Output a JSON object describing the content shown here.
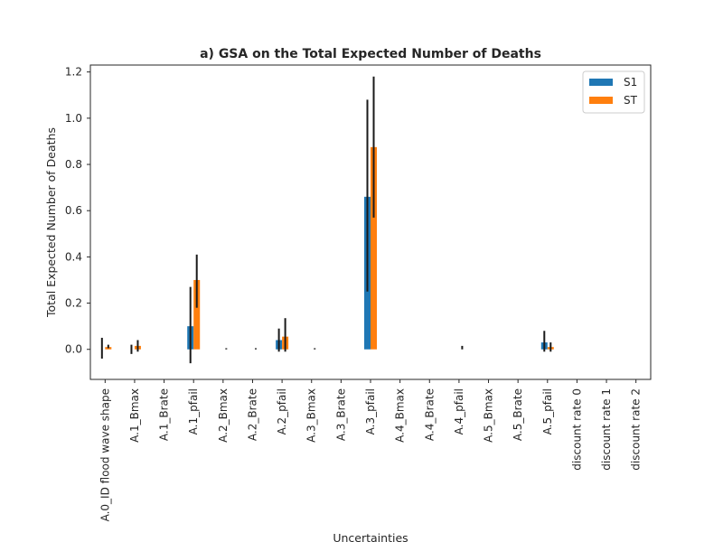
{
  "chart_data": {
    "type": "bar",
    "title": "a) GSA on the Total Expected Number of Deaths",
    "xlabel": "Uncertainties",
    "ylabel": "Total Expected Number of Deaths",
    "ylim": [
      -0.13,
      1.23
    ],
    "yticks": [
      "0.0",
      "0.2",
      "0.4",
      "0.6",
      "0.8",
      "1.0",
      "1.2"
    ],
    "grid": false,
    "legend_position": "top-right",
    "categories": [
      "A.0_ID flood wave shape",
      "A.1_Bmax",
      "A.1_Brate",
      "A.1_pfail",
      "A.2_Bmax",
      "A.2_Brate",
      "A.2_pfail",
      "A.3_Bmax",
      "A.3_Brate",
      "A.3_pfail",
      "A.4_Bmax",
      "A.4_Brate",
      "A.4_pfail",
      "A.5_Bmax",
      "A.5_Brate",
      "A.5_pfail",
      "discount rate 0",
      "discount rate 1",
      "discount rate 2"
    ],
    "series": [
      {
        "name": "S1",
        "color": "#1f77b4",
        "values": [
          0.0,
          0.0,
          0.0,
          0.1,
          0.0,
          0.0,
          0.04,
          0.0,
          0.0,
          0.66,
          0.0,
          0.0,
          0.0,
          0.0,
          0.0,
          0.03,
          0.0,
          0.0,
          0.0
        ],
        "err_low": [
          -0.04,
          -0.02,
          0.0,
          -0.06,
          0.0,
          0.0,
          -0.01,
          0.0,
          0.0,
          0.25,
          0.0,
          0.0,
          0.0,
          0.0,
          0.0,
          -0.01,
          0.0,
          0.0,
          0.0
        ],
        "err_high": [
          0.05,
          0.02,
          0.0,
          0.27,
          0.0,
          0.0,
          0.09,
          0.0,
          0.0,
          1.08,
          0.0,
          0.0,
          0.0,
          0.0,
          0.0,
          0.08,
          0.0,
          0.0,
          0.0
        ]
      },
      {
        "name": "ST",
        "color": "#ff7f0e",
        "values": [
          0.01,
          0.015,
          0.0,
          0.3,
          0.0,
          0.0,
          0.055,
          0.0,
          0.0,
          0.875,
          0.0,
          0.0,
          0.0,
          0.0,
          0.0,
          0.01,
          0.0,
          0.0,
          0.0
        ],
        "err_low": [
          0.005,
          -0.01,
          0.0,
          0.18,
          0.0,
          0.0,
          -0.01,
          0.0,
          0.0,
          0.57,
          0.0,
          0.0,
          0.015,
          0.0,
          0.0,
          -0.01,
          0.0,
          0.0,
          0.0
        ],
        "err_high": [
          0.02,
          0.04,
          0.0,
          0.41,
          0.005,
          0.005,
          0.135,
          0.005,
          0.0,
          1.18,
          0.0,
          0.0,
          0.0,
          0.0,
          0.0,
          0.03,
          0.0,
          0.0,
          0.0
        ]
      }
    ]
  }
}
